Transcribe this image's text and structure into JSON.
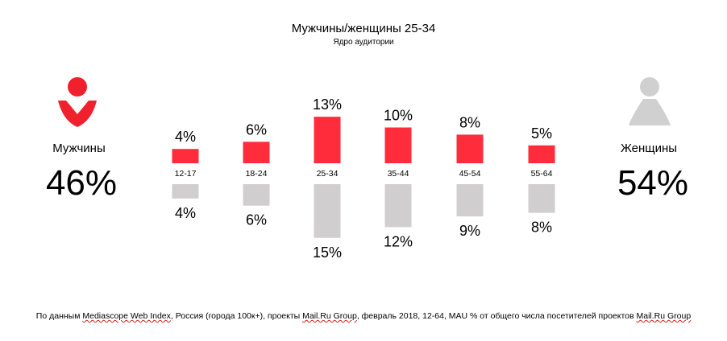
{
  "title": "Мужчины/женщины 25-34",
  "subtitle": "Ядро аудитории",
  "men": {
    "label": "Мужчины",
    "percent": "46%",
    "icon": "male-user-icon"
  },
  "women": {
    "label": "Женщины",
    "percent": "54%",
    "icon": "female-user-icon"
  },
  "footnote": {
    "p1": "По данным ",
    "u1": "Mediascope Web Index",
    "p2": ", Россия (города 100к+), проекты ",
    "u2": "Mail.Ru Group",
    "p3": ", февраль 2018, 12-64, MAU % от общего числа посетителей проектов ",
    "u3": "Mail.Ru Group"
  },
  "colors": {
    "men": "#ff2d3b",
    "women": "#d0cece",
    "men_icon": "#f0202c",
    "women_icon": "#d0d0d0"
  },
  "chart_data": {
    "type": "bar",
    "categories": [
      "12-17",
      "18-24",
      "25-34",
      "35-44",
      "45-54",
      "55-64"
    ],
    "series": [
      {
        "name": "Мужчины",
        "values": [
          4,
          6,
          13,
          10,
          8,
          5
        ],
        "labels": [
          "4%",
          "6%",
          "13%",
          "10%",
          "8%",
          "5%"
        ]
      },
      {
        "name": "Женщины",
        "values": [
          4,
          6,
          15,
          12,
          9,
          8
        ],
        "labels": [
          "4%",
          "6%",
          "15%",
          "12%",
          "9%",
          "8%"
        ]
      }
    ],
    "orientation": "diverging-vertical"
  }
}
